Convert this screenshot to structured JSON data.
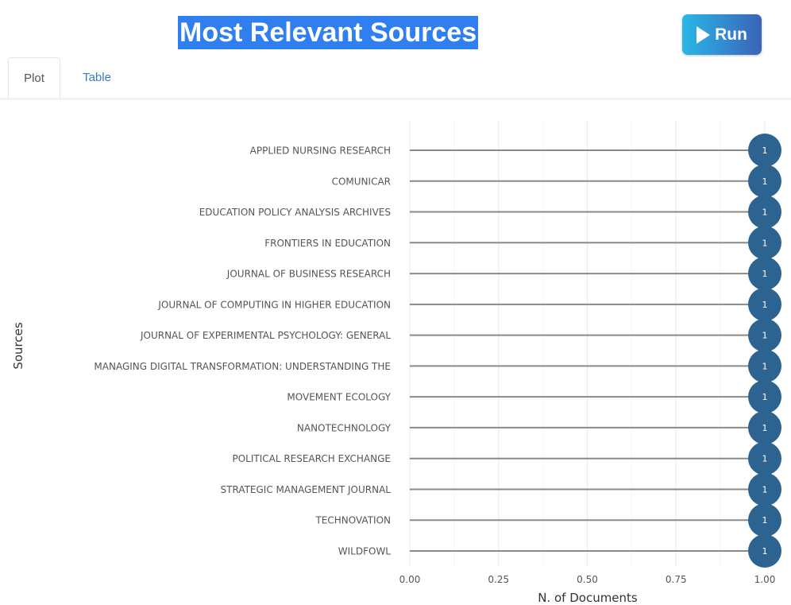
{
  "header": {
    "title": "Most Relevant Sources",
    "run_label": "Run"
  },
  "tabs": [
    {
      "label": "Plot",
      "active": true
    },
    {
      "label": "Table",
      "active": false
    }
  ],
  "colors": {
    "title_bg": "#2f7ff0",
    "point": "#2c6391",
    "stem": "#8a8a8a",
    "tab_link": "#3a7ac8"
  },
  "chart_data": {
    "type": "scatter",
    "style": "lollipop",
    "xlabel": "N. of Documents",
    "ylabel": "Sources",
    "xlim": [
      0,
      1
    ],
    "xticks": [
      "0.00",
      "0.25",
      "0.50",
      "0.75",
      "1.00"
    ],
    "grid": true,
    "categories": [
      "APPLIED NURSING RESEARCH",
      "COMUNICAR",
      "EDUCATION POLICY ANALYSIS ARCHIVES",
      "FRONTIERS IN EDUCATION",
      "JOURNAL OF BUSINESS RESEARCH",
      "JOURNAL OF COMPUTING IN HIGHER EDUCATION",
      "JOURNAL OF EXPERIMENTAL PSYCHOLOGY: GENERAL",
      "MANAGING DIGITAL TRANSFORMATION: UNDERSTANDING THE",
      "MOVEMENT ECOLOGY",
      "NANOTECHNOLOGY",
      "POLITICAL RESEARCH EXCHANGE",
      "STRATEGIC MANAGEMENT JOURNAL",
      "TECHNOVATION",
      "WILDFOWL"
    ],
    "values": [
      1,
      1,
      1,
      1,
      1,
      1,
      1,
      1,
      1,
      1,
      1,
      1,
      1,
      1
    ],
    "point_labels": [
      "1",
      "1",
      "1",
      "1",
      "1",
      "1",
      "1",
      "1",
      "1",
      "1",
      "1",
      "1",
      "1",
      "1"
    ]
  }
}
